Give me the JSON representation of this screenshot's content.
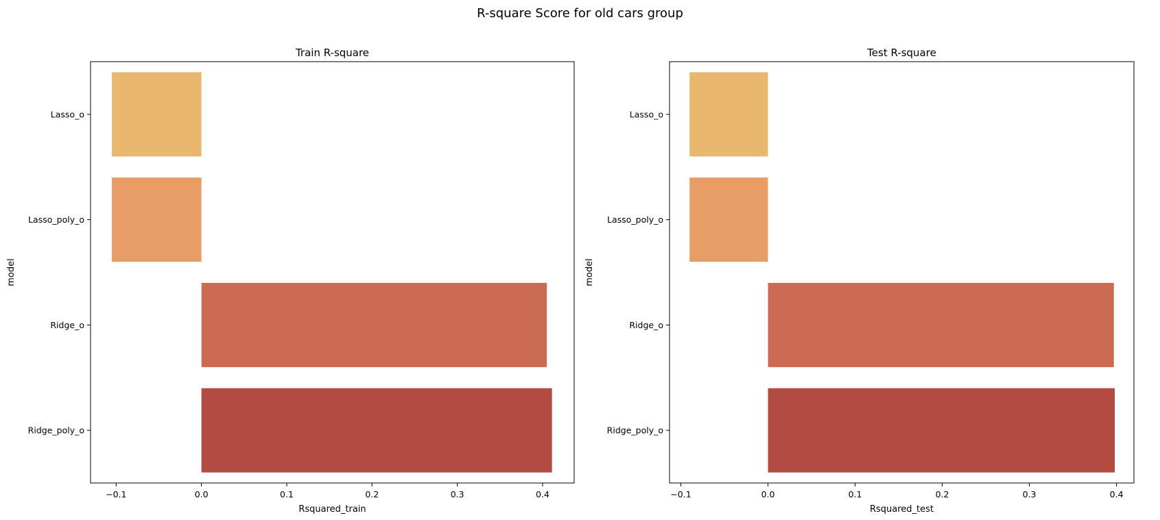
{
  "suptitle": "R-square Score for old cars group",
  "chart_data": [
    {
      "type": "bar",
      "orientation": "horizontal",
      "title": "Train R-square",
      "xlabel": "Rsquared_train",
      "ylabel": "model",
      "categories": [
        "Lasso_o",
        "Lasso_poly_o",
        "Ridge_o",
        "Ridge_poly_o"
      ],
      "values": [
        -0.105,
        -0.105,
        0.405,
        0.411
      ],
      "colors": [
        "#eab76f",
        "#e89d67",
        "#cc6b53",
        "#b24c43"
      ],
      "xlim": [
        -0.13,
        0.437
      ],
      "xticks": [
        -0.1,
        0.0,
        0.1,
        0.2,
        0.3,
        0.4
      ],
      "xtick_labels": [
        "−0.1",
        "0.0",
        "0.1",
        "0.2",
        "0.3",
        "0.4"
      ],
      "grid": false
    },
    {
      "type": "bar",
      "orientation": "horizontal",
      "title": "Test R-square",
      "xlabel": "Rsquared_test",
      "ylabel": "model",
      "categories": [
        "Lasso_o",
        "Lasso_poly_o",
        "Ridge_o",
        "Ridge_poly_o"
      ],
      "values": [
        -0.09,
        -0.09,
        0.397,
        0.398
      ],
      "colors": [
        "#eab76f",
        "#e89d67",
        "#cc6b53",
        "#b24c43"
      ],
      "xlim": [
        -0.113,
        0.42
      ],
      "xticks": [
        -0.1,
        0.0,
        0.1,
        0.2,
        0.3,
        0.4
      ],
      "xtick_labels": [
        "−0.1",
        "0.0",
        "0.1",
        "0.2",
        "0.3",
        "0.4"
      ],
      "grid": false
    }
  ]
}
